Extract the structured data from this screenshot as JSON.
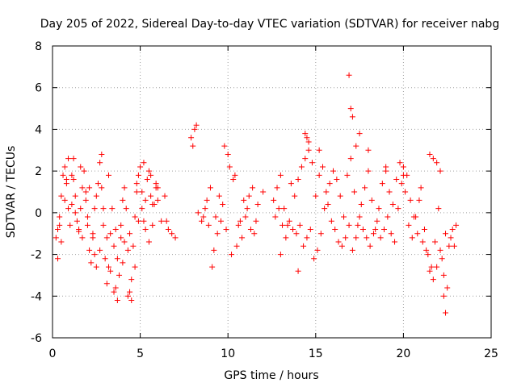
{
  "chart_data": {
    "type": "scatter",
    "title": "Day 205 of 2022, Sidereal Day-to-day VTEC variation (SDTVAR) for receiver nabg",
    "xlabel": "GPS time / hours",
    "ylabel": "SDTVAR / TECUs",
    "xlim": [
      0,
      25
    ],
    "ylim": [
      -6,
      8
    ],
    "x_ticks": [
      0,
      5,
      10,
      15,
      20,
      25
    ],
    "y_ticks": [
      -6,
      -4,
      -2,
      0,
      2,
      4,
      6,
      8
    ],
    "x_tick_labels": [
      "0",
      "5",
      "10",
      "15",
      "20",
      "25"
    ],
    "y_tick_labels": [
      "-6",
      "-4",
      "-2",
      "0",
      "2",
      "4",
      "6",
      "8"
    ],
    "grid": true,
    "marker": "+",
    "color": "#ff0000",
    "series": [
      {
        "name": "SDTVAR",
        "x": [
          0.2,
          0.3,
          0.4,
          0.5,
          0.6,
          0.7,
          0.8,
          0.9,
          1.0,
          1.1,
          1.2,
          1.3,
          1.4,
          1.5,
          1.6,
          1.7,
          1.8,
          1.9,
          2.0,
          2.1,
          2.2,
          2.3,
          2.4,
          2.5,
          2.6,
          2.7,
          2.8,
          2.9,
          3.0,
          3.1,
          3.2,
          3.3,
          3.4,
          3.5,
          3.6,
          3.7,
          3.8,
          3.9,
          4.0,
          4.1,
          4.2,
          4.3,
          4.4,
          4.5,
          4.6,
          4.7,
          4.8,
          4.9,
          5.0,
          5.1,
          5.2,
          5.3,
          5.4,
          5.5,
          5.6,
          5.7,
          5.8,
          5.9,
          6.0,
          6.2,
          6.4,
          6.6,
          6.8,
          7.0,
          0.3,
          0.5,
          0.7,
          0.9,
          1.1,
          1.3,
          1.5,
          1.7,
          1.9,
          2.1,
          2.3,
          2.5,
          2.7,
          2.9,
          3.1,
          3.3,
          3.5,
          3.7,
          3.9,
          4.1,
          4.3,
          4.5,
          4.7,
          4.9,
          5.1,
          5.3,
          5.5,
          5.7,
          5.9,
          0.4,
          0.8,
          1.2,
          1.6,
          2.0,
          2.4,
          2.8,
          3.2,
          3.6,
          4.0,
          4.4,
          4.8,
          5.2,
          5.6,
          6.0,
          6.5,
          7.9,
          8.0,
          8.1,
          8.2,
          8.3,
          8.5,
          8.7,
          8.9,
          9.1,
          9.3,
          9.5,
          9.7,
          9.9,
          10.1,
          10.3,
          10.5,
          10.7,
          10.9,
          11.1,
          11.3,
          11.5,
          11.7,
          8.6,
          8.8,
          9.0,
          9.2,
          9.4,
          9.6,
          9.8,
          10.0,
          10.2,
          10.4,
          10.6,
          10.8,
          11.0,
          11.2,
          11.4,
          11.6,
          12.0,
          12.6,
          12.8,
          13.0,
          13.2,
          13.4,
          13.6,
          13.8,
          14.0,
          14.2,
          14.4,
          14.6,
          14.8,
          15.0,
          15.2,
          15.4,
          15.6,
          15.8,
          16.0,
          16.2,
          16.4,
          16.6,
          16.8,
          17.0,
          17.2,
          17.4,
          17.6,
          17.8,
          18.0,
          18.2,
          18.4,
          18.6,
          18.8,
          19.0,
          19.2,
          19.4,
          19.6,
          19.8,
          20.0,
          20.2,
          20.4,
          20.6,
          20.8,
          21.0,
          21.2,
          21.4,
          21.6,
          21.8,
          22.0,
          22.2,
          22.4,
          22.6,
          22.8,
          23.0,
          12.7,
          12.9,
          13.1,
          13.3,
          13.5,
          13.7,
          13.9,
          14.1,
          14.3,
          14.5,
          14.7,
          14.9,
          15.1,
          15.3,
          15.5,
          15.7,
          15.9,
          16.1,
          16.3,
          16.5,
          16.7,
          16.9,
          17.1,
          17.3,
          17.5,
          17.7,
          17.9,
          18.1,
          18.3,
          18.5,
          18.7,
          18.9,
          19.1,
          19.3,
          19.5,
          19.7,
          19.9,
          20.1,
          20.3,
          20.5,
          20.7,
          20.9,
          21.1,
          21.3,
          21.5,
          21.7,
          21.9,
          22.1,
          22.3,
          22.5,
          22.7,
          22.9,
          13.0,
          14.0,
          14.4,
          14.5,
          14.6,
          15.2,
          16.9,
          17.0,
          17.1,
          17.3,
          17.5,
          18.0,
          19.0,
          20.0,
          21.5,
          21.7,
          21.9,
          22.1,
          22.3,
          22.4
        ],
        "y": [
          -1.2,
          -0.8,
          -0.2,
          0.8,
          1.8,
          2.2,
          1.4,
          0.2,
          -0.6,
          0.4,
          1.6,
          0.8,
          -0.4,
          -0.9,
          0.2,
          1.2,
          2.0,
          1.0,
          -0.6,
          -1.8,
          -2.4,
          -1.2,
          0.2,
          0.8,
          1.4,
          2.4,
          1.2,
          -0.6,
          -2.2,
          -3.4,
          -2.6,
          -1.0,
          0.2,
          -1.6,
          -3.6,
          -4.2,
          -3.0,
          -1.2,
          0.6,
          1.2,
          0.2,
          -1.8,
          -3.8,
          -3.2,
          -1.6,
          -0.2,
          1.0,
          1.8,
          2.2,
          1.0,
          -0.4,
          0.6,
          1.6,
          2.0,
          0.8,
          -0.6,
          0.4,
          1.4,
          0.6,
          -0.4,
          0.8,
          -0.8,
          -1.0,
          -1.2,
          -2.2,
          -1.4,
          0.6,
          2.6,
          1.8,
          0.0,
          -0.8,
          -1.2,
          0.6,
          1.2,
          -1.0,
          -2.6,
          -1.8,
          0.2,
          -1.2,
          -2.8,
          -3.8,
          -2.2,
          -0.6,
          -1.4,
          -4.0,
          -4.2,
          -2.6,
          -0.4,
          0.2,
          -0.8,
          -1.4,
          0.4,
          1.2,
          -0.6,
          1.6,
          2.6,
          2.2,
          -0.2,
          -2.0,
          2.8,
          1.8,
          -0.8,
          -2.4,
          -1.0,
          1.4,
          2.4,
          1.8,
          1.2,
          -0.4,
          3.6,
          3.2,
          4.0,
          4.2,
          0.0,
          -0.4,
          0.2,
          -0.6,
          -2.6,
          -0.2,
          0.8,
          0.4,
          -0.8,
          2.2,
          1.6,
          -1.6,
          -0.4,
          0.6,
          0.2,
          -0.8,
          -1.0,
          0.4,
          -0.2,
          0.6,
          1.2,
          -1.8,
          -1.0,
          -0.4,
          3.2,
          2.8,
          -2.0,
          1.8,
          -0.6,
          -1.2,
          -0.2,
          0.8,
          1.2,
          -0.4,
          1.0,
          0.6,
          1.2,
          1.8,
          0.2,
          -0.6,
          1.4,
          0.8,
          1.6,
          2.2,
          2.6,
          3.0,
          2.4,
          0.8,
          1.8,
          2.2,
          1.0,
          1.4,
          2.0,
          1.6,
          0.8,
          -0.2,
          1.8,
          2.6,
          1.0,
          -0.6,
          0.4,
          1.2,
          2.0,
          0.6,
          -0.8,
          0.2,
          1.4,
          2.2,
          1.0,
          0.4,
          1.6,
          2.4,
          2.2,
          1.8,
          0.6,
          -0.2,
          -1.0,
          1.2,
          -0.8,
          -2.0,
          -2.6,
          -1.4,
          0.2,
          -2.2,
          -1.0,
          -1.6,
          -0.8,
          -0.6,
          -0.2,
          0.2,
          -0.6,
          -1.2,
          -0.4,
          -0.8,
          -1.0,
          -0.6,
          -1.6,
          -1.2,
          -0.8,
          -2.2,
          -1.8,
          -1.0,
          0.2,
          0.4,
          -0.4,
          -0.8,
          -1.4,
          -1.6,
          -1.2,
          -0.6,
          -1.8,
          -1.2,
          -0.2,
          -0.8,
          -1.2,
          -1.6,
          -1.0,
          -0.4,
          -1.2,
          -0.8,
          -0.2,
          -1.0,
          -1.4,
          0.2,
          1.4,
          1.0,
          -0.6,
          -1.2,
          -0.2,
          0.6,
          -1.4,
          -1.8,
          -2.8,
          -3.2,
          -2.6,
          -1.8,
          -3.0,
          -3.6,
          -1.2,
          -1.6,
          -2.0,
          -2.8,
          3.8,
          3.6,
          3.4,
          3.0,
          6.6,
          5.0,
          4.6,
          3.2,
          3.8,
          3.0,
          2.0,
          1.8,
          2.8,
          2.6,
          2.4,
          2.0,
          -4.0,
          -4.8
        ]
      }
    ]
  }
}
